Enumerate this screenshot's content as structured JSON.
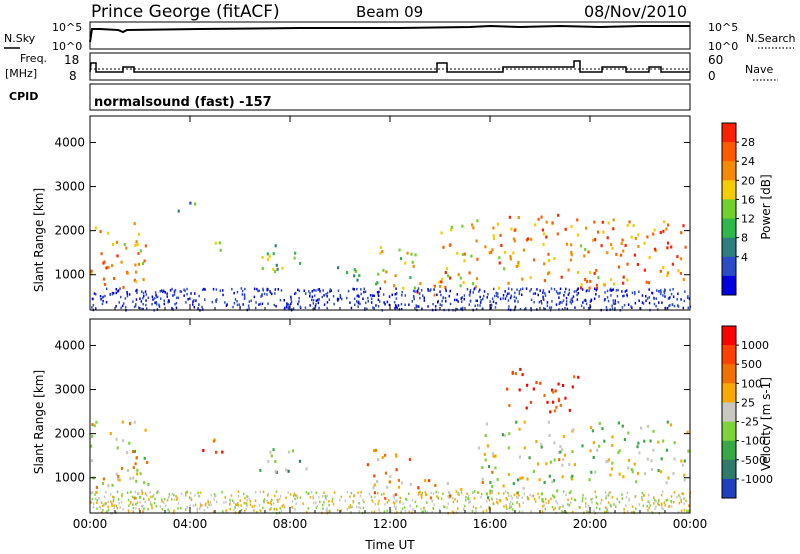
{
  "header": {
    "station": "Prince George (fitACF)",
    "beam": "Beam 09",
    "date": "08/Nov/2010"
  },
  "panels": {
    "nsky": {
      "left_label": "N.Sky",
      "right_label": "N.Search",
      "ticks_left": [
        "10^5",
        "10^0"
      ],
      "ticks_right": [
        "10^5",
        "10^0"
      ]
    },
    "freq": {
      "left_label_top": "Freq.",
      "left_label_bottom": "[MHz]",
      "right_label": "Nave",
      "ticks_left": [
        "18",
        "8"
      ],
      "ticks_right": [
        "60",
        "0"
      ]
    },
    "cpid": {
      "label": "CPID",
      "program": "normalsound (fast) -157"
    }
  },
  "chart_data": [
    {
      "type": "heatmap",
      "title": "",
      "xlabel": "",
      "ylabel": "Slant Range [km]",
      "x_ticks": [
        "00:00",
        "04:00",
        "08:00",
        "12:00",
        "16:00",
        "20:00",
        "00:00"
      ],
      "y_ticks": [
        1000,
        2000,
        3000,
        4000
      ],
      "ylim": [
        200,
        4600
      ],
      "colorbar": {
        "label": "Power [dB]",
        "ticks": [
          "4",
          "8",
          "12",
          "16",
          "20",
          "24",
          "28"
        ],
        "colors": [
          "#0000e0",
          "#2a4cc8",
          "#2c7f7e",
          "#2eb84a",
          "#70d02c",
          "#f5cc00",
          "#f58a00",
          "#ff5a00",
          "#ff2000"
        ]
      },
      "regions": [
        {
          "t0": 0.0,
          "t1": 2.2,
          "r0": 600,
          "r1": 2200,
          "level": 0.75
        },
        {
          "t0": 3.5,
          "t1": 4.3,
          "r0": 2400,
          "r1": 2700,
          "level": 0.3
        },
        {
          "t0": 4.5,
          "t1": 5.5,
          "r0": 1550,
          "r1": 1850,
          "level": 0.45
        },
        {
          "t0": 6.6,
          "t1": 8.8,
          "r0": 1100,
          "r1": 1700,
          "level": 0.4
        },
        {
          "t0": 9.5,
          "t1": 11.0,
          "r0": 900,
          "r1": 1300,
          "level": 0.4
        },
        {
          "t0": 11.0,
          "t1": 13.0,
          "r0": 700,
          "r1": 1700,
          "level": 0.55
        },
        {
          "t0": 13.0,
          "t1": 14.5,
          "r0": 550,
          "r1": 900,
          "level": 0.8
        },
        {
          "t0": 14.0,
          "t1": 17.0,
          "r0": 700,
          "r1": 2400,
          "level": 0.7
        },
        {
          "t0": 17.0,
          "t1": 20.5,
          "r0": 700,
          "r1": 2400,
          "level": 0.75
        },
        {
          "t0": 20.5,
          "t1": 24.0,
          "r0": 800,
          "r1": 2400,
          "level": 0.8
        }
      ]
    },
    {
      "type": "heatmap",
      "title": "",
      "xlabel": "Time UT",
      "ylabel": "Slant Range [km]",
      "x_ticks": [
        "00:00",
        "04:00",
        "08:00",
        "12:00",
        "16:00",
        "20:00",
        "00:00"
      ],
      "y_ticks": [
        1000,
        2000,
        3000,
        4000
      ],
      "ylim": [
        200,
        4600
      ],
      "colorbar": {
        "label": "Velocity [m s-1]",
        "ticks": [
          "1000",
          "500",
          "100",
          "25",
          "-25",
          "-100",
          "-500",
          "-1000"
        ],
        "colors": [
          "#2040c0",
          "#2f7a6a",
          "#38a845",
          "#7ed23a",
          "#c8c8c0",
          "#f8a800",
          "#f07000",
          "#ff4000",
          "#ff0000"
        ]
      },
      "regions": [
        {
          "t0": 0.0,
          "t1": 2.3,
          "r0": 500,
          "r1": 2400,
          "level": 0.55
        },
        {
          "t0": 4.3,
          "t1": 5.5,
          "r0": 1550,
          "r1": 1900,
          "level": 0.7
        },
        {
          "t0": 6.7,
          "t1": 8.8,
          "r0": 1100,
          "r1": 1700,
          "level": 0.3
        },
        {
          "t0": 11.0,
          "t1": 13.0,
          "r0": 500,
          "r1": 1700,
          "level": 0.65
        },
        {
          "t0": 13.0,
          "t1": 16.0,
          "r0": 450,
          "r1": 1000,
          "level": 0.6
        },
        {
          "t0": 15.5,
          "t1": 19.0,
          "r0": 500,
          "r1": 2300,
          "level": 0.45
        },
        {
          "t0": 16.5,
          "t1": 19.5,
          "r0": 2500,
          "r1": 3500,
          "level": 0.9
        },
        {
          "t0": 19.0,
          "t1": 24.0,
          "r0": 900,
          "r1": 2300,
          "level": 0.45
        }
      ]
    }
  ]
}
